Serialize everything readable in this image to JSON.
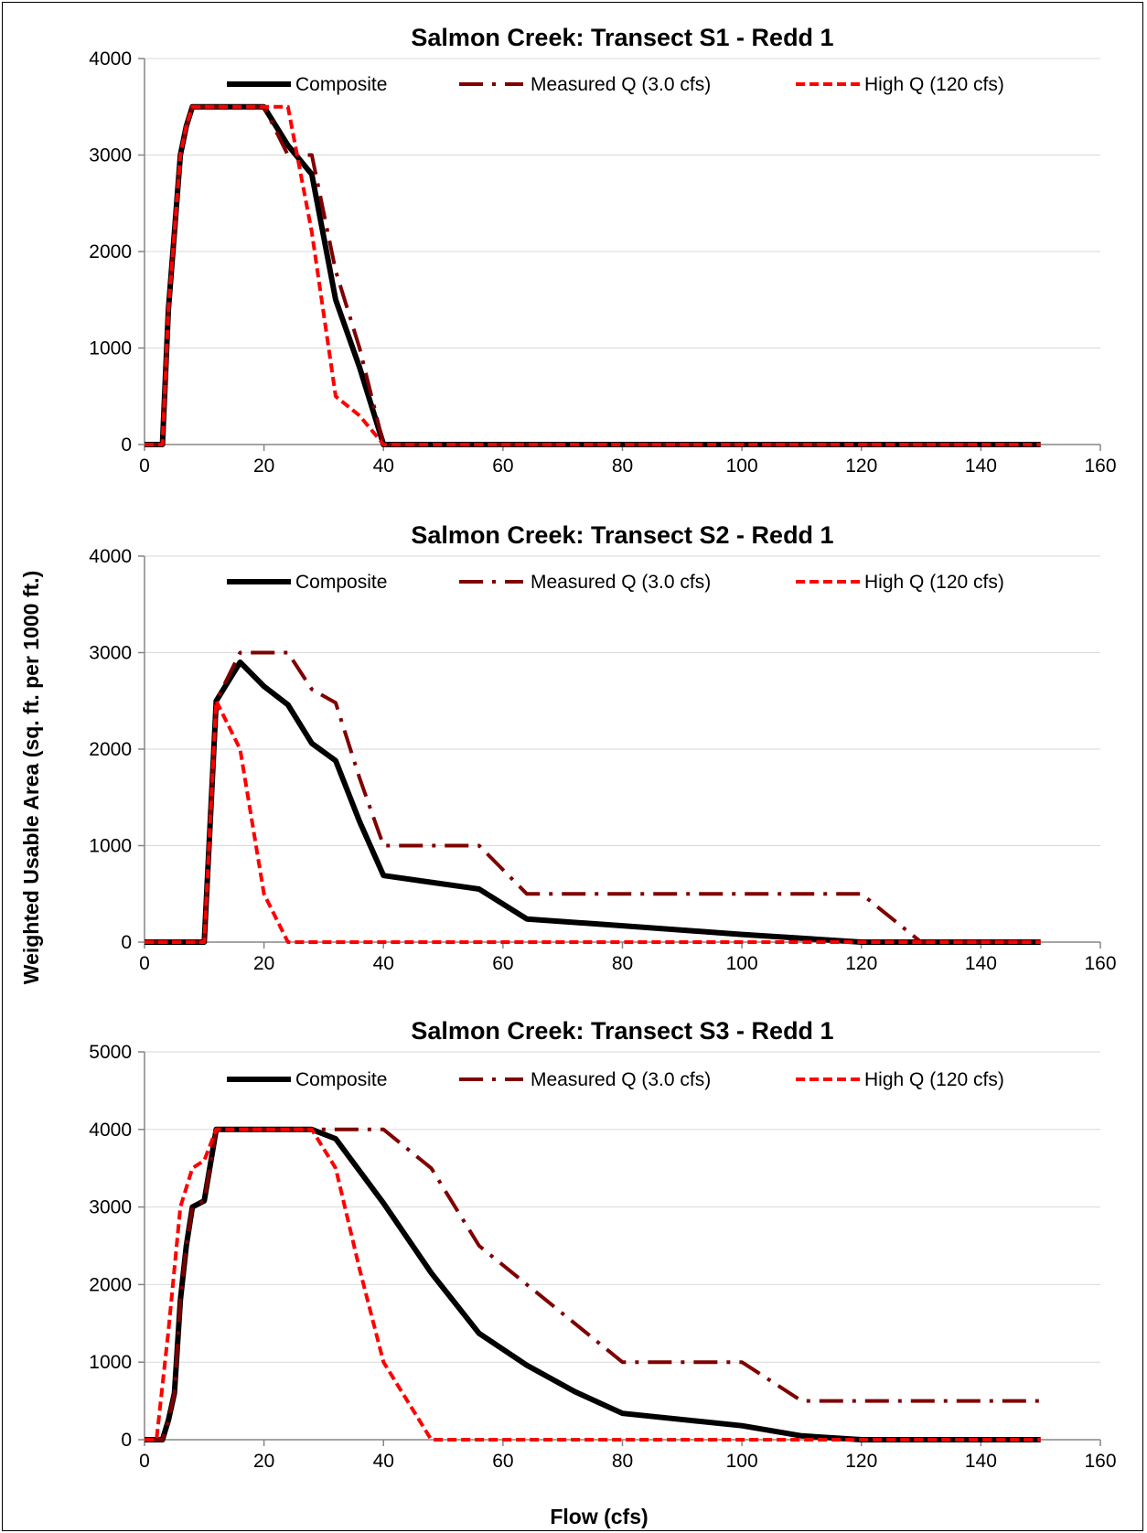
{
  "figure": {
    "ylabel": "Weighted Usable Area (sq. ft. per 1000 ft.)",
    "xlabel": "Flow (cfs)"
  },
  "colors": {
    "composite": "#000000",
    "measured": "#7f0000",
    "high": "#ff0000",
    "grid": "#d9d9d9"
  },
  "chart_data": [
    {
      "type": "line",
      "title": "Salmon Creek: Transect S1 - Redd 1",
      "xlim": [
        0,
        160
      ],
      "ylim": [
        0,
        4000
      ],
      "xticks": [
        0,
        20,
        40,
        60,
        80,
        100,
        120,
        140,
        160
      ],
      "yticks": [
        0,
        1000,
        2000,
        3000,
        4000
      ],
      "grid": "horizontal",
      "legend": "top",
      "series": [
        {
          "name": "Composite",
          "style": "solid",
          "x": [
            0,
            3,
            4,
            5,
            6,
            7,
            8,
            12,
            16,
            20,
            24,
            28,
            32,
            36,
            40,
            150
          ],
          "y": [
            0,
            0,
            1400,
            2200,
            3000,
            3300,
            3500,
            3500,
            3500,
            3500,
            3100,
            2800,
            1500,
            800,
            0,
            0
          ]
        },
        {
          "name": "Measured Q (3.0 cfs)",
          "style": "dashdot",
          "x": [
            0,
            3,
            4,
            5,
            6,
            7,
            8,
            12,
            16,
            20,
            24,
            28,
            32,
            36,
            40,
            150
          ],
          "y": [
            0,
            0,
            1400,
            2200,
            3000,
            3300,
            3500,
            3500,
            3500,
            3500,
            3000,
            3000,
            1800,
            1000,
            0,
            0
          ]
        },
        {
          "name": "High Q (120 cfs)",
          "style": "dashed",
          "x": [
            0,
            3,
            4,
            5,
            6,
            7,
            8,
            12,
            16,
            20,
            24,
            28,
            32,
            36,
            40,
            150
          ],
          "y": [
            0,
            0,
            1400,
            2200,
            3000,
            3300,
            3500,
            3500,
            3500,
            3500,
            3500,
            2200,
            500,
            300,
            0,
            0
          ]
        }
      ]
    },
    {
      "type": "line",
      "title": "Salmon Creek: Transect S2 - Redd 1",
      "xlim": [
        0,
        160
      ],
      "ylim": [
        0,
        4000
      ],
      "xticks": [
        0,
        20,
        40,
        60,
        80,
        100,
        120,
        140,
        160
      ],
      "yticks": [
        0,
        1000,
        2000,
        3000,
        4000
      ],
      "grid": "horizontal",
      "legend": "top",
      "series": [
        {
          "name": "Composite",
          "style": "solid",
          "x": [
            0,
            10,
            12,
            16,
            20,
            24,
            28,
            32,
            36,
            40,
            48,
            56,
            64,
            80,
            100,
            120,
            150
          ],
          "y": [
            0,
            0,
            2500,
            2900,
            2650,
            2460,
            2060,
            1880,
            1250,
            690,
            620,
            550,
            240,
            170,
            80,
            0,
            0
          ]
        },
        {
          "name": "Measured Q (3.0 cfs)",
          "style": "dashdot",
          "x": [
            0,
            10,
            12,
            16,
            20,
            24,
            28,
            32,
            36,
            40,
            48,
            56,
            64,
            80,
            100,
            120,
            130,
            150
          ],
          "y": [
            0,
            0,
            2500,
            3000,
            3000,
            3000,
            2620,
            2480,
            1700,
            1000,
            1000,
            1000,
            500,
            500,
            500,
            500,
            0,
            0
          ]
        },
        {
          "name": "High Q (120 cfs)",
          "style": "dashed",
          "x": [
            0,
            10,
            12,
            16,
            20,
            24,
            150
          ],
          "y": [
            0,
            0,
            2500,
            2000,
            500,
            0,
            0
          ]
        }
      ]
    },
    {
      "type": "line",
      "title": "Salmon Creek: Transect S3 - Redd 1",
      "xlim": [
        0,
        160
      ],
      "ylim": [
        0,
        5000
      ],
      "xticks": [
        0,
        20,
        40,
        60,
        80,
        100,
        120,
        140,
        160
      ],
      "yticks": [
        0,
        1000,
        2000,
        3000,
        4000,
        5000
      ],
      "grid": "horizontal",
      "legend": "top",
      "series": [
        {
          "name": "Composite",
          "style": "solid",
          "x": [
            0,
            3,
            4,
            5,
            6,
            7,
            8,
            10,
            12,
            16,
            20,
            24,
            28,
            32,
            40,
            48,
            56,
            64,
            72,
            80,
            100,
            110,
            120,
            150
          ],
          "y": [
            0,
            0,
            250,
            600,
            1800,
            2500,
            3000,
            3080,
            4000,
            4000,
            4000,
            4000,
            4000,
            3880,
            3050,
            2150,
            1370,
            960,
            620,
            340,
            180,
            50,
            0,
            0
          ]
        },
        {
          "name": "Measured Q (3.0 cfs)",
          "style": "dashdot",
          "x": [
            0,
            3,
            4,
            5,
            6,
            7,
            8,
            10,
            12,
            16,
            20,
            24,
            28,
            32,
            40,
            48,
            56,
            64,
            72,
            80,
            100,
            110,
            120,
            150
          ],
          "y": [
            0,
            0,
            250,
            600,
            1800,
            2500,
            3000,
            3080,
            4000,
            4000,
            4000,
            4000,
            4000,
            4000,
            4000,
            3500,
            2500,
            2000,
            1500,
            1000,
            1000,
            500,
            500,
            500
          ]
        },
        {
          "name": "High Q (120 cfs)",
          "style": "dashed",
          "x": [
            0,
            2,
            4,
            6,
            8,
            10,
            12,
            16,
            20,
            24,
            28,
            32,
            36,
            40,
            44,
            48,
            150
          ],
          "y": [
            0,
            0,
            1400,
            3000,
            3500,
            3600,
            4000,
            4000,
            4000,
            4000,
            4000,
            3500,
            2200,
            1000,
            500,
            0,
            0
          ]
        }
      ]
    }
  ]
}
